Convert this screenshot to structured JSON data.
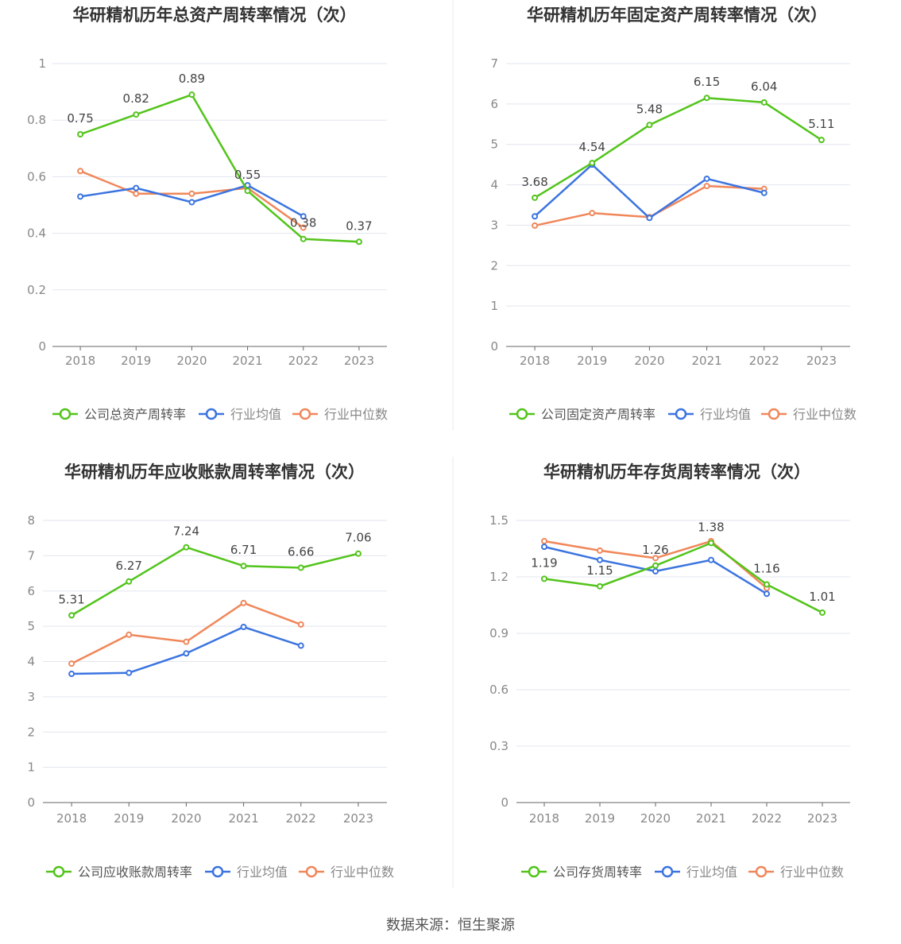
{
  "footer": {
    "source": "数据来源：恒生聚源"
  },
  "colors": {
    "company": "#52c41a",
    "avg": "#3b74e0",
    "median": "#f0875a",
    "grid": "#e3e5ef",
    "axis": "#666666",
    "tick": "#888888",
    "title": "#333333",
    "divider": "#e8e8e8"
  },
  "chart_data": [
    {
      "type": "line",
      "title": "华研精机历年总资产周转率情况（次）",
      "categories": [
        "2018",
        "2019",
        "2020",
        "2021",
        "2022",
        "2023"
      ],
      "ylim": [
        0,
        1
      ],
      "yticks": [
        0,
        0.2,
        0.4,
        0.6,
        0.8,
        1
      ],
      "ytick_labels": [
        "0",
        "0.2",
        "0.4",
        "0.6",
        "0.8",
        "1"
      ],
      "legend_position": "bottom",
      "series": [
        {
          "name": "公司总资产周转率",
          "role": "company",
          "values": [
            0.75,
            0.82,
            0.89,
            0.55,
            0.38,
            0.37
          ],
          "labels": [
            "0.75",
            "0.82",
            "0.89",
            "0.55",
            "0.38",
            "0.37"
          ]
        },
        {
          "name": "行业均值",
          "role": "avg",
          "values": [
            0.53,
            0.56,
            0.51,
            0.57,
            0.46,
            null
          ]
        },
        {
          "name": "行业中位数",
          "role": "median",
          "values": [
            0.62,
            0.54,
            0.54,
            0.56,
            0.42,
            null
          ]
        }
      ]
    },
    {
      "type": "line",
      "title": "华研精机历年固定资产周转率情况（次）",
      "categories": [
        "2018",
        "2019",
        "2020",
        "2021",
        "2022",
        "2023"
      ],
      "ylim": [
        0,
        7
      ],
      "yticks": [
        0,
        1,
        2,
        3,
        4,
        5,
        6,
        7
      ],
      "ytick_labels": [
        "0",
        "1",
        "2",
        "3",
        "4",
        "5",
        "6",
        "7"
      ],
      "legend_position": "bottom",
      "series": [
        {
          "name": "公司固定资产周转率",
          "role": "company",
          "values": [
            3.68,
            4.54,
            5.48,
            6.15,
            6.04,
            5.11
          ],
          "labels": [
            "3.68",
            "4.54",
            "5.48",
            "6.15",
            "6.04",
            "5.11"
          ]
        },
        {
          "name": "行业均值",
          "role": "avg",
          "values": [
            3.22,
            4.5,
            3.18,
            4.15,
            3.8,
            null
          ]
        },
        {
          "name": "行业中位数",
          "role": "median",
          "values": [
            2.99,
            3.3,
            3.2,
            3.97,
            3.9,
            null
          ]
        }
      ]
    },
    {
      "type": "line",
      "title": "华研精机历年应收账款周转率情况（次）",
      "categories": [
        "2018",
        "2019",
        "2020",
        "2021",
        "2022",
        "2023"
      ],
      "ylim": [
        0,
        8
      ],
      "yticks": [
        0,
        1,
        2,
        3,
        4,
        5,
        6,
        7,
        8
      ],
      "ytick_labels": [
        "0",
        "1",
        "2",
        "3",
        "4",
        "5",
        "6",
        "7",
        "8"
      ],
      "legend_position": "bottom",
      "series": [
        {
          "name": "公司应收账款周转率",
          "role": "company",
          "values": [
            5.31,
            6.27,
            7.24,
            6.71,
            6.66,
            7.06
          ],
          "labels": [
            "5.31",
            "6.27",
            "7.24",
            "6.71",
            "6.66",
            "7.06"
          ]
        },
        {
          "name": "行业均值",
          "role": "avg",
          "values": [
            3.65,
            3.68,
            4.23,
            4.98,
            4.45,
            null
          ]
        },
        {
          "name": "行业中位数",
          "role": "median",
          "values": [
            3.94,
            4.76,
            4.56,
            5.66,
            5.05,
            null
          ]
        }
      ]
    },
    {
      "type": "line",
      "title": "华研精机历年存货周转率情况（次）",
      "categories": [
        "2018",
        "2019",
        "2020",
        "2021",
        "2022",
        "2023"
      ],
      "ylim": [
        0,
        1.5
      ],
      "yticks": [
        0,
        0.3,
        0.6,
        0.9,
        1.2,
        1.5
      ],
      "ytick_labels": [
        "0",
        "0.3",
        "0.6",
        "0.9",
        "1.2",
        "1.5"
      ],
      "legend_position": "bottom",
      "series": [
        {
          "name": "公司存货周转率",
          "role": "company",
          "values": [
            1.19,
            1.15,
            1.26,
            1.38,
            1.16,
            1.01
          ],
          "labels": [
            "1.19",
            "1.15",
            "1.26",
            "1.38",
            "1.16",
            "1.01"
          ]
        },
        {
          "name": "行业均值",
          "role": "avg",
          "values": [
            1.36,
            1.29,
            1.23,
            1.29,
            1.11,
            null
          ]
        },
        {
          "name": "行业中位数",
          "role": "median",
          "values": [
            1.39,
            1.34,
            1.3,
            1.39,
            1.14,
            null
          ]
        }
      ]
    }
  ]
}
